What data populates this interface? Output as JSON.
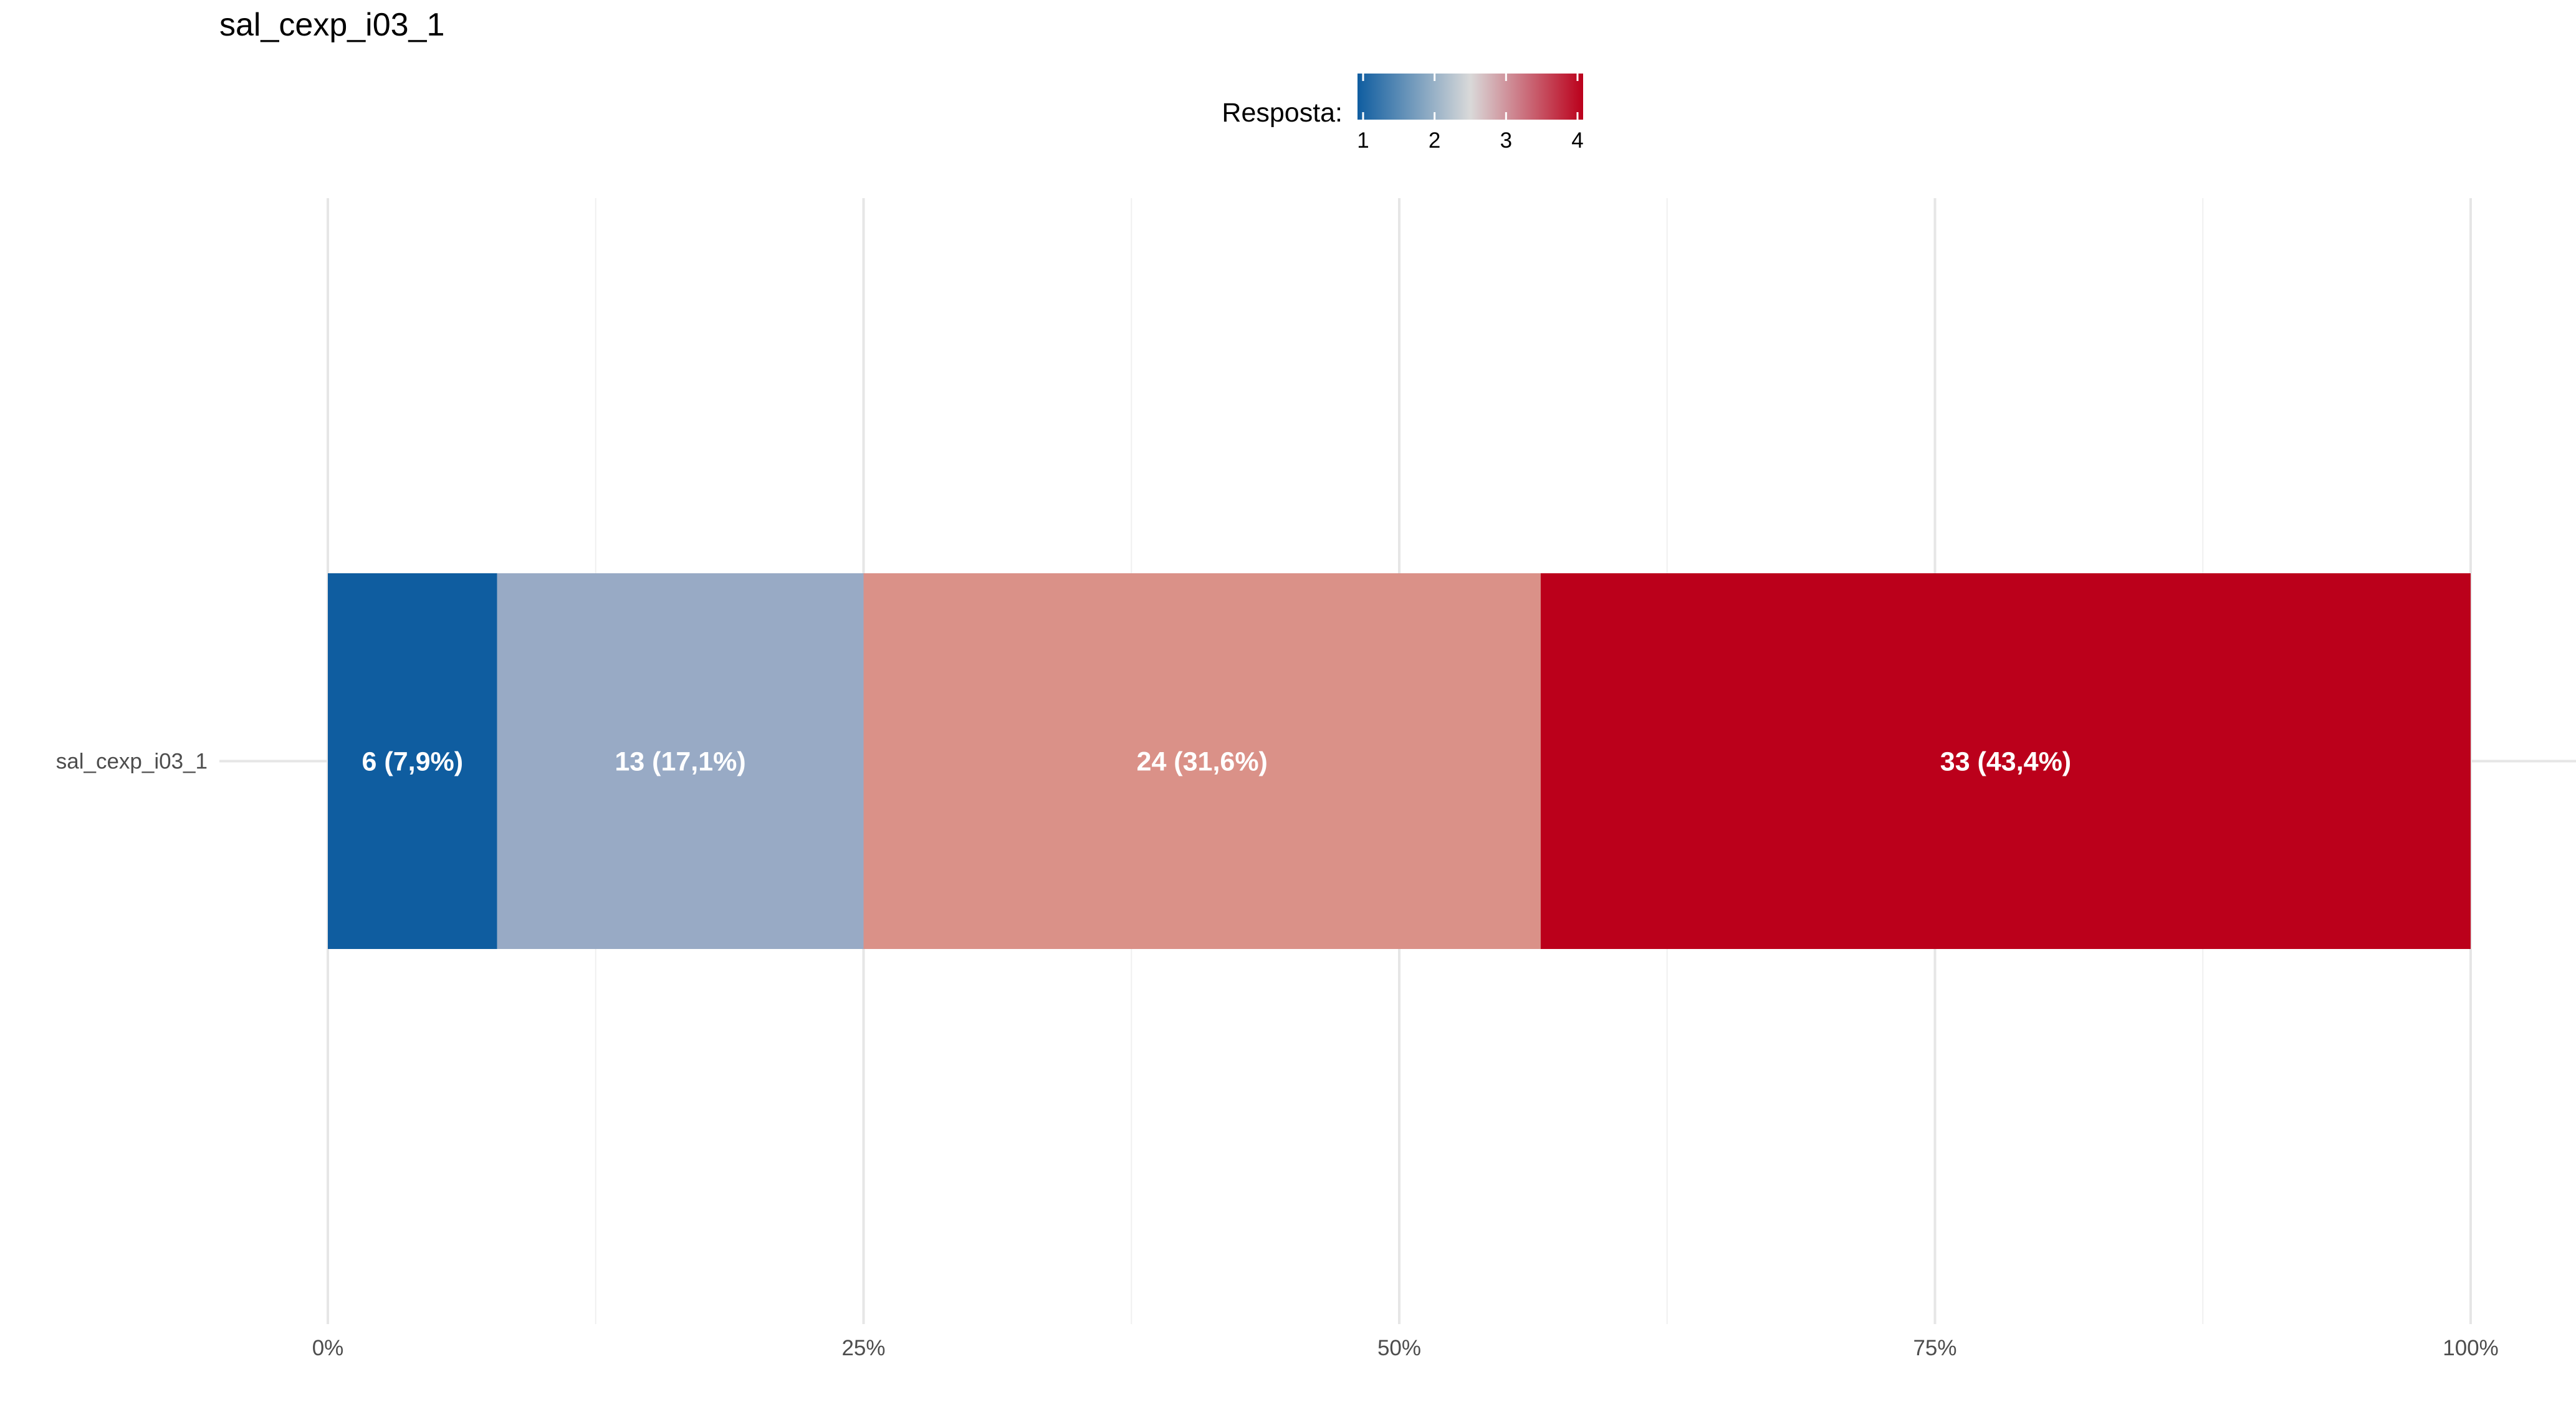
{
  "chart_data": {
    "type": "bar",
    "orientation": "horizontal",
    "stacked": true,
    "title": "sal_cexp_i03_1",
    "categories": [
      "sal_cexp_i03_1"
    ],
    "series": [
      {
        "name": "1",
        "values": [
          7.9
        ],
        "count": 6,
        "label": "6 (7,9%)",
        "color": "#0F5DA0"
      },
      {
        "name": "2",
        "values": [
          17.1
        ],
        "count": 13,
        "label": "13 (17,1%)",
        "color": "#98AAC5"
      },
      {
        "name": "3",
        "values": [
          31.6
        ],
        "count": 24,
        "label": "24 (31,6%)",
        "color": "#DA9188"
      },
      {
        "name": "4",
        "values": [
          43.4
        ],
        "count": 33,
        "label": "33 (43,4%)",
        "color": "#BB001B"
      }
    ],
    "xlim": [
      0,
      100
    ],
    "x_ticks": [
      0,
      25,
      50,
      75,
      100
    ],
    "x_tick_labels": [
      "0%",
      "25%",
      "50%",
      "75%",
      "100%"
    ],
    "grid": true,
    "legend": {
      "title": "Resposta:",
      "position": "top",
      "kind": "color-gradient",
      "ticks": [
        "1",
        "2",
        "3",
        "4"
      ],
      "gradient_colors": [
        "#0F5DA0",
        "#D9D9D9",
        "#BB001B"
      ]
    },
    "label_color": "#ffffff"
  },
  "colors": {
    "background": "#ffffff",
    "grid_major": "#E6E6E6",
    "grid_minor": "#F0F0F0",
    "text": "#000000",
    "axis_text": "#4D4D4D"
  }
}
